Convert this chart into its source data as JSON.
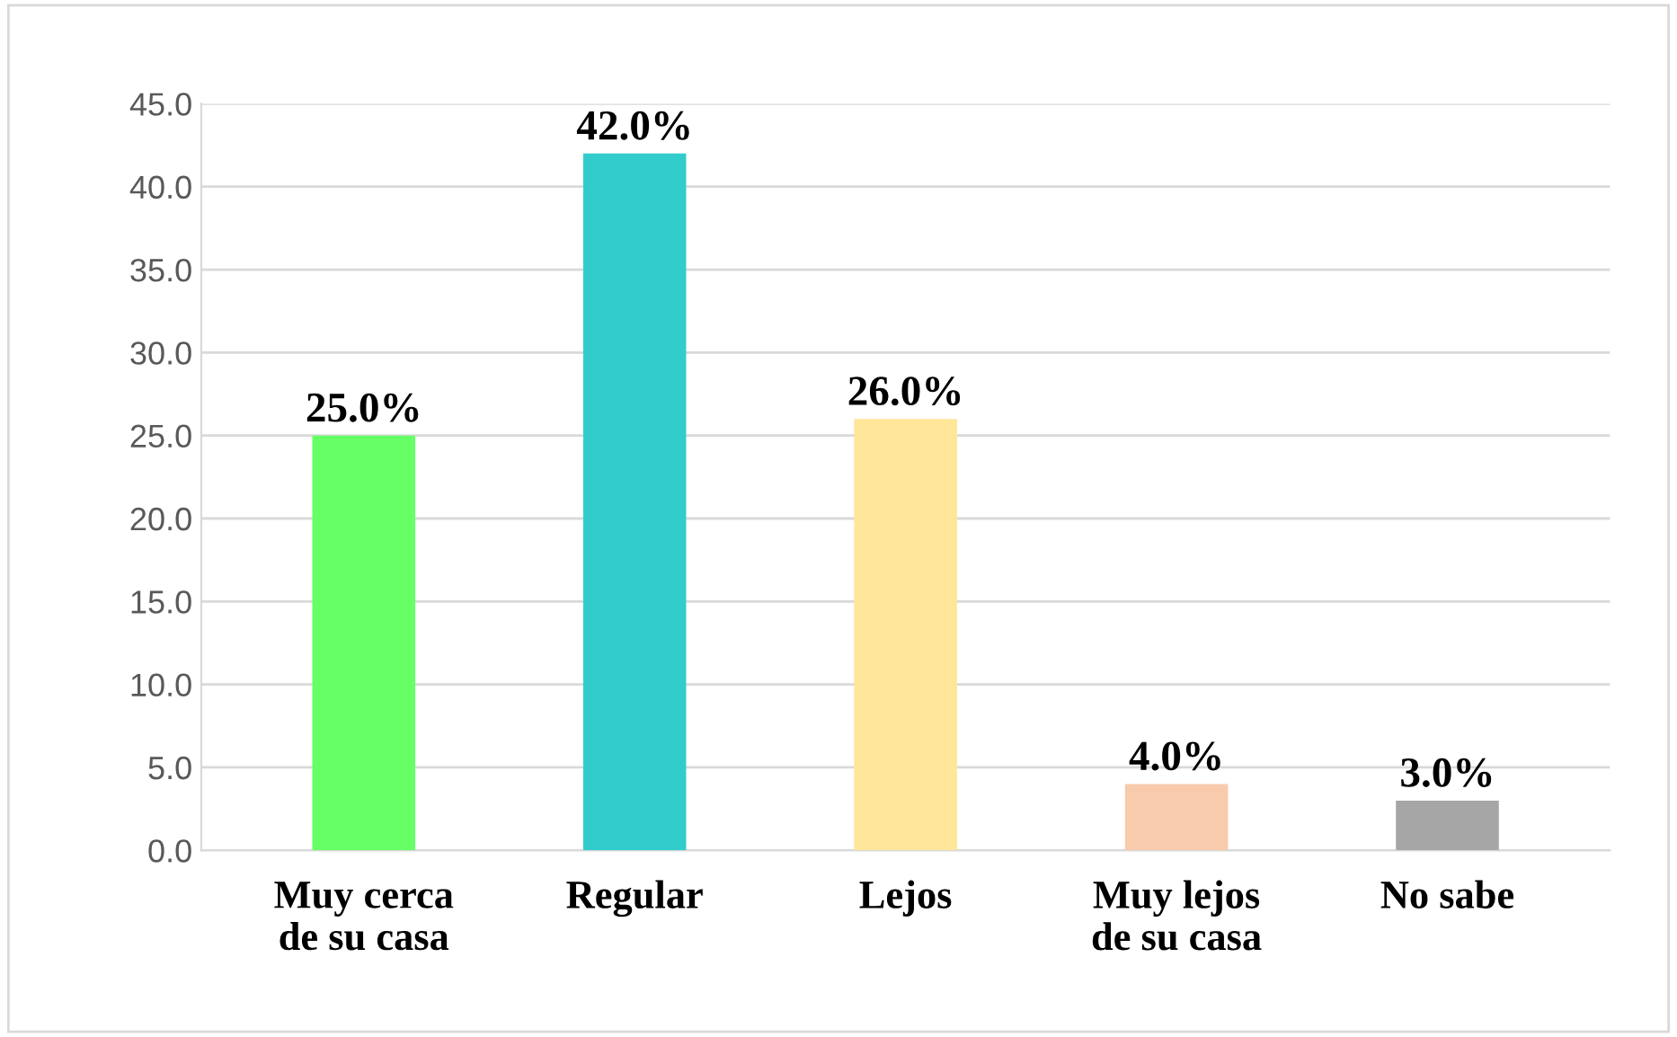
{
  "chart_data": {
    "type": "bar",
    "categories": [
      "Muy cerca\nde su casa",
      "Regular",
      "Lejos",
      "Muy lejos\nde su casa",
      "No sabe"
    ],
    "values": [
      25.0,
      42.0,
      26.0,
      4.0,
      3.0
    ],
    "colors": [
      "#66ff66",
      "#33cccc",
      "#ffe699",
      "#f8cbad",
      "#a6a6a6"
    ],
    "value_labels": [
      "25.0%",
      "42.0%",
      "26.0%",
      "4.0%",
      "3.0%"
    ],
    "ylim": [
      0,
      45
    ],
    "yticks": [
      {
        "value": 0,
        "label": "0.0"
      },
      {
        "value": 5,
        "label": "5.0"
      },
      {
        "value": 10,
        "label": "10.0"
      },
      {
        "value": 15,
        "label": "15.0"
      },
      {
        "value": 20,
        "label": "20.0"
      },
      {
        "value": 25,
        "label": "25.0"
      },
      {
        "value": 30,
        "label": "30.0"
      },
      {
        "value": 35,
        "label": "35.0"
      },
      {
        "value": 40,
        "label": "40.0"
      },
      {
        "value": 45,
        "label": "45.0"
      }
    ],
    "grid": "y",
    "legend": false
  }
}
